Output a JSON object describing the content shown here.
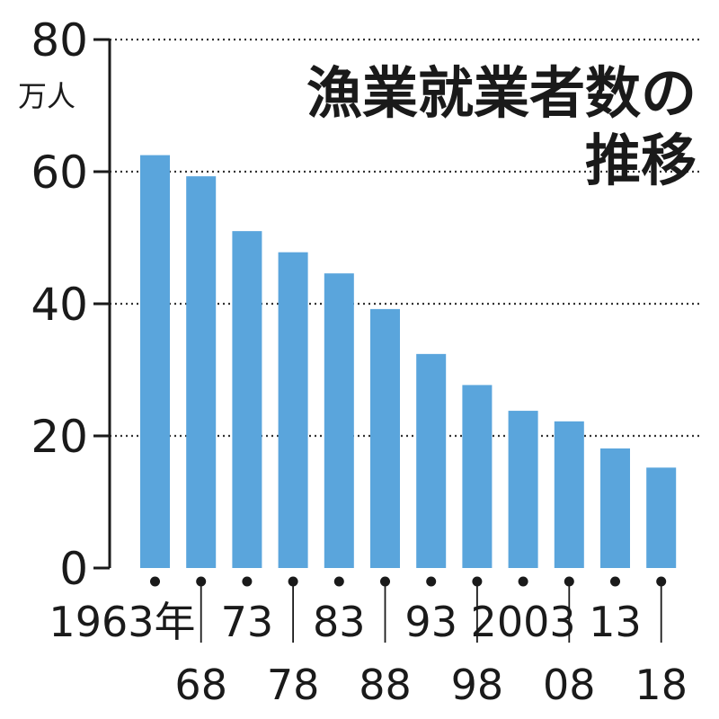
{
  "chart_data": {
    "type": "bar",
    "title": "漁業就業者数の推移",
    "title_lines": [
      "漁業就業者数の",
      "推移"
    ],
    "unit": "万人",
    "categories": [
      "1963年",
      "68",
      "73",
      "78",
      "83",
      "88",
      "93",
      "98",
      "2003",
      "08",
      "13",
      "18"
    ],
    "values": [
      62.5,
      59.3,
      51.0,
      47.8,
      44.6,
      39.2,
      32.4,
      27.7,
      23.8,
      22.2,
      18.1,
      15.2
    ],
    "ylim": [
      0,
      80
    ],
    "yticks": [
      0,
      20,
      40,
      60,
      80
    ],
    "grid": true,
    "colors": {
      "bar": "#5aa5dc",
      "text": "#1a1a1a",
      "grid": "#333333"
    }
  }
}
